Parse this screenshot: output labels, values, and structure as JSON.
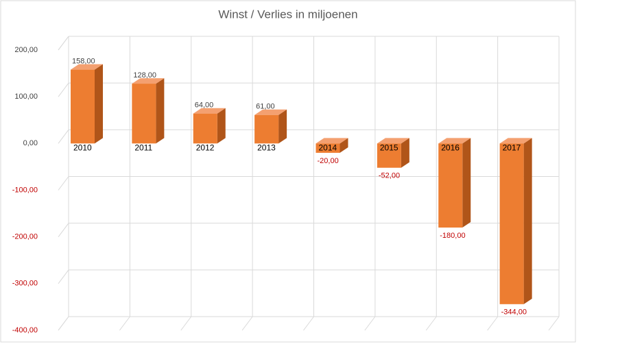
{
  "chart_data": {
    "type": "bar",
    "title": "Winst / Verlies in miljoenen",
    "categories": [
      "2010",
      "2011",
      "2012",
      "2013",
      "2014",
      "2015",
      "2016",
      "2017"
    ],
    "values": [
      158,
      128,
      64,
      61,
      -20,
      -52,
      -180,
      -344
    ],
    "value_labels": [
      "158,00",
      "128,00",
      "64,00",
      "61,00",
      "-20,00",
      "-52,00",
      "-180,00",
      "-344,00"
    ],
    "color": "#ed7d31",
    "negative_label_color": "#c00000",
    "ylim": [
      -400,
      200
    ],
    "yticks": [
      {
        "value": -400,
        "label": "-400,00"
      },
      {
        "value": -300,
        "label": "-300,00"
      },
      {
        "value": -200,
        "label": "-200,00"
      },
      {
        "value": -100,
        "label": "-100,00"
      },
      {
        "value": 0,
        "label": "0,00"
      },
      {
        "value": 100,
        "label": "100,00"
      },
      {
        "value": 200,
        "label": "200,00"
      }
    ],
    "grid": true
  }
}
